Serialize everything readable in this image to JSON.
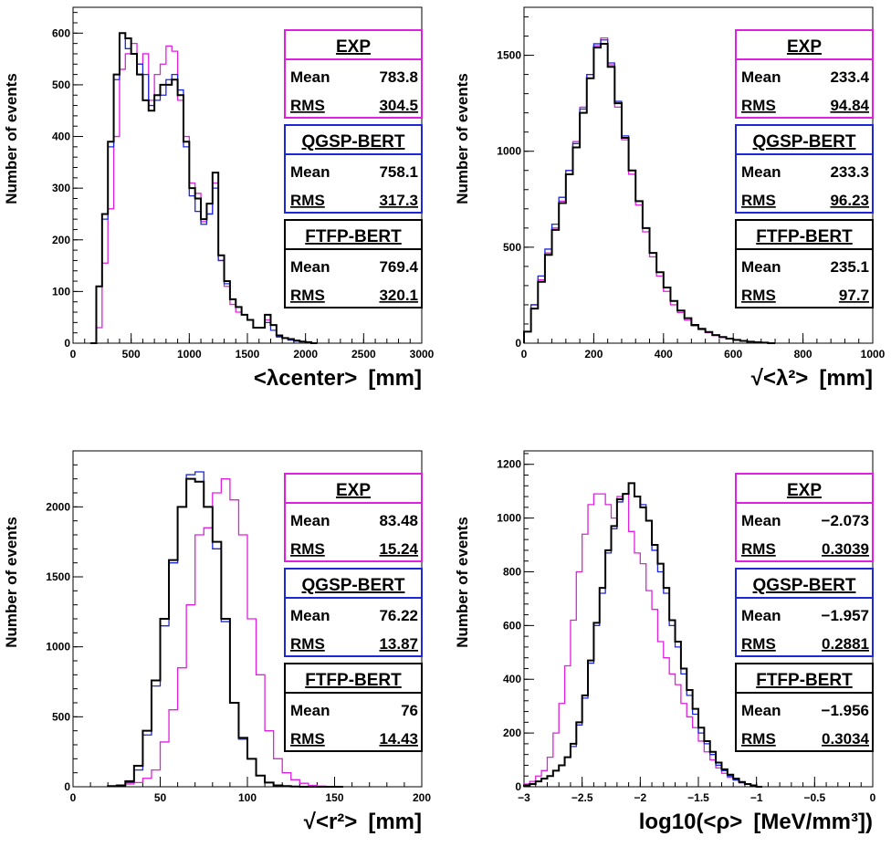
{
  "colors": {
    "exp": "#e020e0",
    "qgsp": "#1c28d8",
    "ftfp": "#000000"
  },
  "chart_data": [
    {
      "type": "histogram",
      "ylabel": "Number of events",
      "xlabel": "[mm]",
      "xlabel_symbol": "<λcenter>",
      "xlim": [
        0,
        3000
      ],
      "ylim": [
        0,
        650
      ],
      "xticks": [
        0,
        500,
        1000,
        1500,
        2000,
        2500,
        3000
      ],
      "yticks": [
        0,
        100,
        200,
        300,
        400,
        500,
        600
      ],
      "legend_location": "right",
      "series": [
        {
          "key": "exp",
          "name": "EXP",
          "mean": "783.8",
          "rms": "304.5",
          "bin_width": 50,
          "x": [
            150,
            200,
            250,
            300,
            350,
            400,
            450,
            500,
            550,
            600,
            650,
            700,
            750,
            800,
            850,
            900,
            950,
            1000,
            1050,
            1100,
            1150,
            1200,
            1250,
            1300,
            1350,
            1400,
            1450,
            1500,
            1550,
            1600,
            1650,
            1700,
            1750,
            1800,
            1850,
            1900,
            1950,
            2000,
            2050
          ],
          "values": [
            0,
            30,
            155,
            260,
            400,
            530,
            560,
            580,
            540,
            560,
            470,
            520,
            540,
            575,
            565,
            470,
            400,
            310,
            290,
            235,
            250,
            310,
            160,
            110,
            75,
            60,
            55,
            45,
            30,
            30,
            45,
            35,
            15,
            10,
            8,
            5,
            3,
            2,
            0
          ]
        },
        {
          "key": "qgsp",
          "name": "QGSP-BERT",
          "mean": "758.1",
          "rms": "317.3",
          "bin_width": 50,
          "x": [
            150,
            200,
            250,
            300,
            350,
            400,
            450,
            500,
            550,
            600,
            650,
            700,
            750,
            800,
            850,
            900,
            950,
            1000,
            1050,
            1100,
            1150,
            1200,
            1250,
            1300,
            1350,
            1400,
            1450,
            1500,
            1550,
            1600,
            1650,
            1700,
            1750,
            1800,
            1850,
            1900,
            1950,
            2000,
            2050
          ],
          "values": [
            0,
            110,
            240,
            380,
            510,
            600,
            570,
            560,
            540,
            520,
            460,
            470,
            480,
            510,
            520,
            490,
            380,
            285,
            255,
            230,
            250,
            300,
            160,
            115,
            85,
            70,
            55,
            45,
            30,
            30,
            40,
            25,
            12,
            10,
            6,
            4,
            3,
            2,
            0
          ]
        },
        {
          "key": "ftfp",
          "name": "FTFP-BERT",
          "mean": "769.4",
          "rms": "320.1",
          "bin_width": 50,
          "x": [
            150,
            200,
            250,
            300,
            350,
            400,
            450,
            500,
            550,
            600,
            650,
            700,
            750,
            800,
            850,
            900,
            950,
            1000,
            1050,
            1100,
            1150,
            1200,
            1250,
            1300,
            1350,
            1400,
            1450,
            1500,
            1550,
            1600,
            1650,
            1700,
            1750,
            1800,
            1850,
            1900,
            1950,
            2000,
            2050
          ],
          "values": [
            0,
            110,
            250,
            390,
            520,
            600,
            590,
            560,
            520,
            470,
            450,
            480,
            500,
            500,
            510,
            480,
            390,
            300,
            280,
            240,
            270,
            330,
            170,
            120,
            85,
            70,
            55,
            45,
            30,
            30,
            55,
            35,
            15,
            10,
            8,
            5,
            3,
            2,
            0
          ]
        }
      ]
    },
    {
      "type": "histogram",
      "ylabel": "Number of events",
      "xlabel": "[mm]",
      "xlabel_symbol": "√<λ²>",
      "xlim": [
        0,
        1000
      ],
      "ylim": [
        0,
        1750
      ],
      "xticks": [
        0,
        200,
        400,
        600,
        800,
        1000
      ],
      "yticks": [
        0,
        500,
        1000,
        1500
      ],
      "legend_location": "right",
      "series": [
        {
          "key": "exp",
          "name": "EXP",
          "mean": "233.4",
          "rms": "94.84",
          "bin_width": 20,
          "x": [
            0,
            20,
            40,
            60,
            80,
            100,
            120,
            140,
            160,
            180,
            200,
            220,
            240,
            260,
            280,
            300,
            320,
            340,
            360,
            380,
            400,
            420,
            440,
            460,
            480,
            500,
            520,
            540,
            560,
            580,
            600,
            620,
            640,
            660,
            680,
            700
          ],
          "values": [
            60,
            200,
            330,
            470,
            600,
            740,
            900,
            1050,
            1230,
            1400,
            1550,
            1590,
            1450,
            1230,
            1060,
            880,
            720,
            580,
            450,
            350,
            270,
            200,
            160,
            120,
            90,
            70,
            55,
            40,
            30,
            22,
            15,
            10,
            8,
            5,
            3,
            0
          ]
        },
        {
          "key": "qgsp",
          "name": "QGSP-BERT",
          "mean": "233.3",
          "rms": "96.23",
          "bin_width": 20,
          "x": [
            0,
            20,
            40,
            60,
            80,
            100,
            120,
            140,
            160,
            180,
            200,
            220,
            240,
            260,
            280,
            300,
            320,
            340,
            360,
            380,
            400,
            420,
            440,
            460,
            480,
            500,
            520,
            540,
            560,
            580,
            600,
            620,
            640,
            660,
            680,
            700
          ],
          "values": [
            60,
            200,
            350,
            490,
            620,
            760,
            900,
            1040,
            1220,
            1400,
            1560,
            1580,
            1460,
            1260,
            1080,
            900,
            740,
            600,
            470,
            370,
            290,
            220,
            170,
            130,
            95,
            75,
            58,
            42,
            32,
            24,
            17,
            12,
            8,
            5,
            3,
            0
          ]
        },
        {
          "key": "ftfp",
          "name": "FTFP-BERT",
          "mean": "235.1",
          "rms": "97.7",
          "bin_width": 20,
          "x": [
            0,
            20,
            40,
            60,
            80,
            100,
            120,
            140,
            160,
            180,
            200,
            220,
            240,
            260,
            280,
            300,
            320,
            340,
            360,
            380,
            400,
            420,
            440,
            460,
            480,
            500,
            520,
            540,
            560,
            580,
            600,
            620,
            640,
            660,
            680,
            700
          ],
          "values": [
            60,
            180,
            320,
            460,
            590,
            730,
            880,
            1020,
            1200,
            1380,
            1540,
            1560,
            1440,
            1250,
            1070,
            900,
            740,
            600,
            470,
            370,
            290,
            220,
            170,
            130,
            95,
            75,
            58,
            42,
            32,
            24,
            17,
            12,
            8,
            5,
            3,
            0
          ]
        }
      ]
    },
    {
      "type": "histogram",
      "ylabel": "Number of events",
      "xlabel": "[mm]",
      "xlabel_symbol": "√<r²>",
      "xlim": [
        0,
        200
      ],
      "ylim": [
        0,
        2400
      ],
      "xticks": [
        0,
        50,
        100,
        150,
        200
      ],
      "yticks": [
        0,
        500,
        1000,
        1500,
        2000
      ],
      "legend_location": "right",
      "series": [
        {
          "key": "exp",
          "name": "EXP",
          "mean": "83.48",
          "rms": "15.24",
          "bin_width": 5,
          "x": [
            20,
            25,
            30,
            35,
            40,
            45,
            50,
            55,
            60,
            65,
            70,
            75,
            80,
            85,
            90,
            95,
            100,
            105,
            110,
            115,
            120,
            125,
            130,
            135,
            140,
            145,
            150
          ],
          "values": [
            5,
            10,
            20,
            30,
            60,
            120,
            320,
            550,
            850,
            1300,
            1800,
            1850,
            2100,
            2200,
            2050,
            1800,
            1200,
            800,
            400,
            200,
            100,
            50,
            25,
            10,
            5,
            2,
            0
          ]
        },
        {
          "key": "qgsp",
          "name": "QGSP-BERT",
          "mean": "76.22",
          "rms": "13.87",
          "bin_width": 5,
          "x": [
            20,
            25,
            30,
            35,
            40,
            45,
            50,
            55,
            60,
            65,
            70,
            75,
            80,
            85,
            90,
            95,
            100,
            105,
            110,
            115,
            120,
            125,
            130,
            135,
            140,
            145,
            150
          ],
          "values": [
            5,
            10,
            30,
            120,
            370,
            720,
            1150,
            1600,
            2000,
            2230,
            2250,
            2000,
            1700,
            1180,
            600,
            340,
            200,
            80,
            30,
            10,
            5,
            2,
            0,
            0,
            0,
            0,
            0
          ]
        },
        {
          "key": "ftfp",
          "name": "FTFP-BERT",
          "mean": "76",
          "rms": "14.43",
          "bin_width": 5,
          "x": [
            20,
            25,
            30,
            35,
            40,
            45,
            50,
            55,
            60,
            65,
            70,
            75,
            80,
            85,
            90,
            95,
            100,
            105,
            110,
            115,
            120,
            125,
            130,
            135,
            140,
            145,
            150
          ],
          "values": [
            5,
            10,
            40,
            150,
            400,
            760,
            1200,
            1620,
            2000,
            2200,
            2180,
            2000,
            1750,
            1200,
            600,
            350,
            200,
            80,
            30,
            10,
            5,
            2,
            0,
            0,
            0,
            0,
            0
          ]
        }
      ]
    },
    {
      "type": "histogram",
      "ylabel": "Number of events",
      "xlabel": "[MeV/mm³])",
      "xlabel_symbol": "log10(<ρ>",
      "xlim": [
        -3,
        0
      ],
      "ylim": [
        0,
        1250
      ],
      "xticks": [
        -3,
        -2.5,
        -2,
        -1.5,
        -1,
        -0.5,
        0
      ],
      "xtick_labels": [
        "−3",
        "−2.5",
        "−2",
        "−1.5",
        "−1",
        "−0.5",
        "0"
      ],
      "yticks": [
        0,
        200,
        400,
        600,
        800,
        1000,
        1200
      ],
      "legend_location": "right",
      "series": [
        {
          "key": "exp",
          "name": "EXP",
          "mean": "−2.073",
          "rms": "0.3039",
          "bin_width": 0.05,
          "x": [
            -3,
            -2.95,
            -2.9,
            -2.85,
            -2.8,
            -2.75,
            -2.7,
            -2.65,
            -2.6,
            -2.55,
            -2.5,
            -2.45,
            -2.4,
            -2.35,
            -2.3,
            -2.25,
            -2.2,
            -2.15,
            -2.1,
            -2.05,
            -2.0,
            -1.95,
            -1.9,
            -1.85,
            -1.8,
            -1.75,
            -1.7,
            -1.65,
            -1.6,
            -1.55,
            -1.5,
            -1.45,
            -1.4,
            -1.35,
            -1.3,
            -1.25,
            -1.2,
            -1.15,
            -1.1,
            -1.05,
            -1.0
          ],
          "values": [
            10,
            20,
            40,
            60,
            110,
            200,
            310,
            450,
            620,
            800,
            940,
            1050,
            1090,
            1090,
            1050,
            1000,
            1080,
            1090,
            950,
            870,
            830,
            730,
            660,
            540,
            480,
            420,
            380,
            310,
            260,
            220,
            170,
            130,
            100,
            70,
            50,
            35,
            25,
            15,
            10,
            5,
            0
          ]
        },
        {
          "key": "qgsp",
          "name": "QGSP-BERT",
          "mean": "−1.957",
          "rms": "0.2881",
          "bin_width": 0.05,
          "x": [
            -3,
            -2.95,
            -2.9,
            -2.85,
            -2.8,
            -2.75,
            -2.7,
            -2.65,
            -2.6,
            -2.55,
            -2.5,
            -2.45,
            -2.4,
            -2.35,
            -2.3,
            -2.25,
            -2.2,
            -2.15,
            -2.1,
            -2.05,
            -2.0,
            -1.95,
            -1.9,
            -1.85,
            -1.8,
            -1.75,
            -1.7,
            -1.65,
            -1.6,
            -1.55,
            -1.5,
            -1.45,
            -1.4,
            -1.35,
            -1.3,
            -1.25,
            -1.2,
            -1.15,
            -1.1,
            -1.05,
            -1.0
          ],
          "values": [
            5,
            10,
            20,
            30,
            40,
            60,
            80,
            110,
            150,
            230,
            330,
            460,
            600,
            720,
            870,
            960,
            1060,
            1090,
            1130,
            1080,
            1050,
            990,
            880,
            800,
            720,
            600,
            520,
            420,
            340,
            270,
            200,
            160,
            120,
            80,
            60,
            40,
            25,
            15,
            10,
            5,
            0
          ]
        },
        {
          "key": "ftfp",
          "name": "FTFP-BERT",
          "mean": "−1.956",
          "rms": "0.3034",
          "bin_width": 0.05,
          "x": [
            -3,
            -2.95,
            -2.9,
            -2.85,
            -2.8,
            -2.75,
            -2.7,
            -2.65,
            -2.6,
            -2.55,
            -2.5,
            -2.45,
            -2.4,
            -2.35,
            -2.3,
            -2.25,
            -2.2,
            -2.15,
            -2.1,
            -2.05,
            -2.0,
            -1.95,
            -1.9,
            -1.85,
            -1.8,
            -1.75,
            -1.7,
            -1.65,
            -1.6,
            -1.55,
            -1.5,
            -1.45,
            -1.4,
            -1.35,
            -1.3,
            -1.25,
            -1.2,
            -1.15,
            -1.1,
            -1.05,
            -1.0
          ],
          "values": [
            5,
            10,
            20,
            30,
            40,
            60,
            80,
            110,
            160,
            240,
            340,
            470,
            610,
            740,
            880,
            970,
            1070,
            1090,
            1130,
            1080,
            1040,
            990,
            900,
            830,
            740,
            620,
            540,
            440,
            360,
            290,
            220,
            170,
            130,
            90,
            65,
            45,
            30,
            18,
            10,
            5,
            0
          ]
        }
      ]
    }
  ],
  "legend_labels": {
    "mean": "Mean",
    "rms": "RMS"
  }
}
